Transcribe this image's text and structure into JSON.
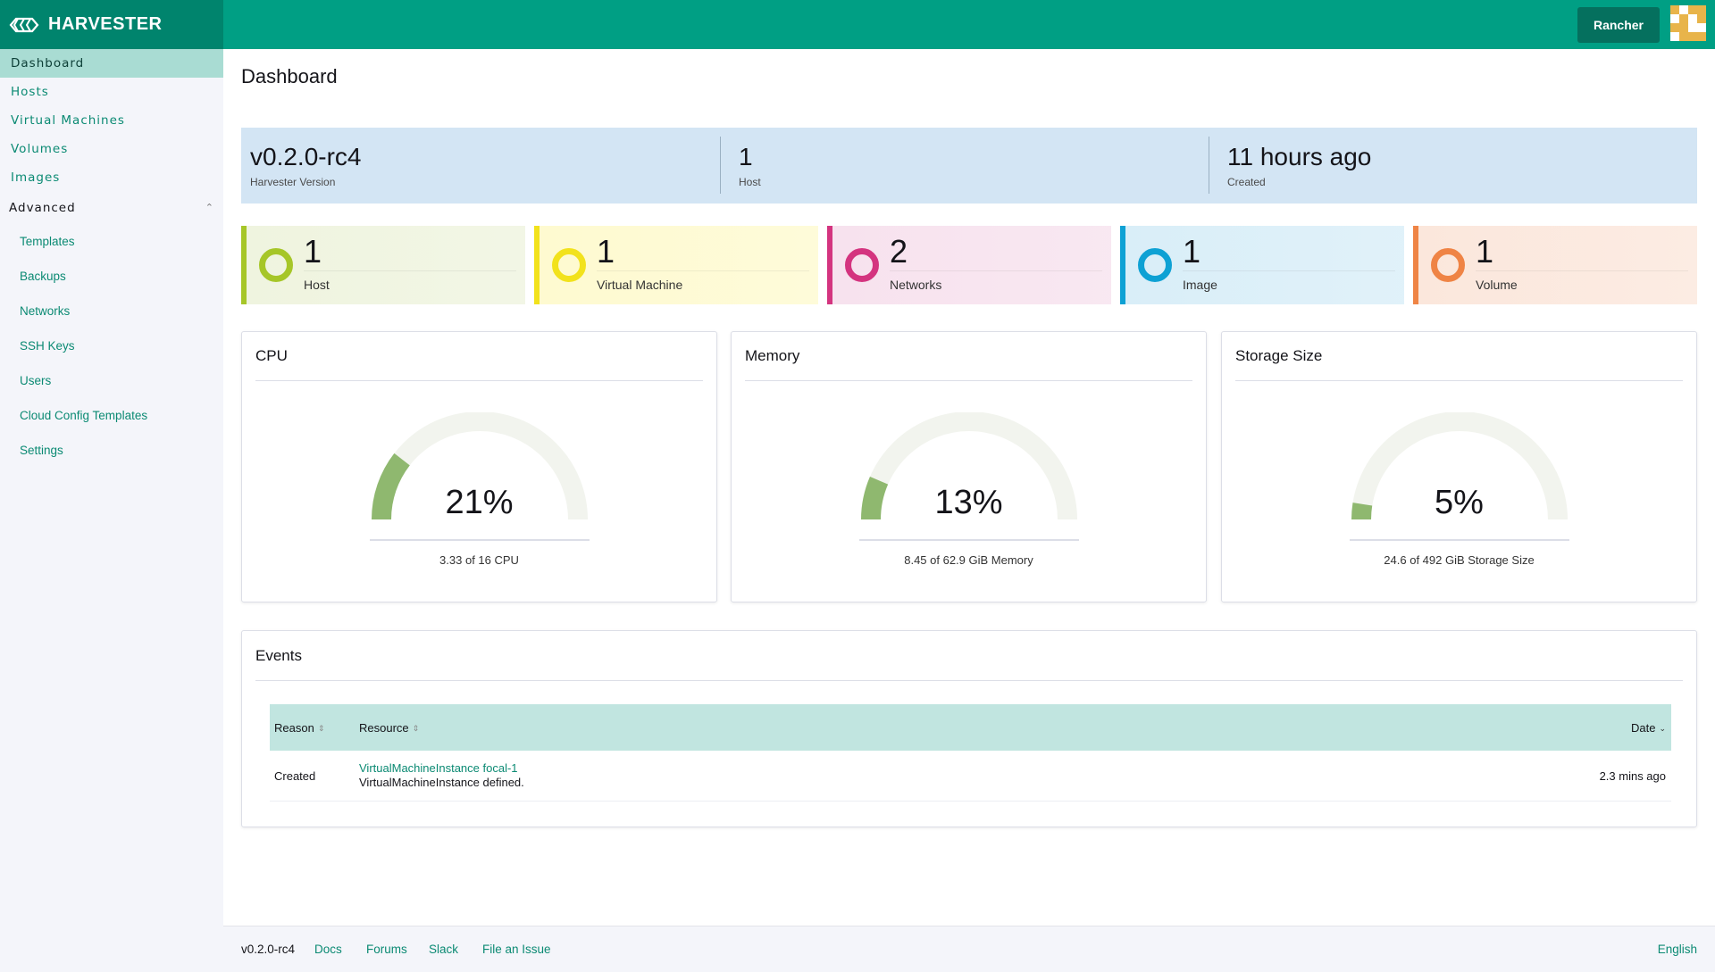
{
  "header": {
    "brand": "HARVESTER",
    "rancher_button": "Rancher"
  },
  "sidebar": {
    "items": [
      {
        "label": "Dashboard"
      },
      {
        "label": "Hosts"
      },
      {
        "label": "Virtual Machines"
      },
      {
        "label": "Volumes"
      },
      {
        "label": "Images"
      }
    ],
    "group": {
      "label": "Advanced",
      "items": [
        {
          "label": "Templates"
        },
        {
          "label": "Backups"
        },
        {
          "label": "Networks"
        },
        {
          "label": "SSH Keys"
        },
        {
          "label": "Users"
        },
        {
          "label": "Cloud Config Templates"
        },
        {
          "label": "Settings"
        }
      ]
    }
  },
  "main": {
    "title": "Dashboard",
    "summary": [
      {
        "value": "v0.2.0-rc4",
        "label": "Harvester Version"
      },
      {
        "value": "1",
        "label": "Host"
      },
      {
        "value": "11 hours ago",
        "label": "Created"
      }
    ],
    "counts": [
      {
        "value": "1",
        "label": "Host",
        "color": "#a6c628",
        "bg": "#eff4df"
      },
      {
        "value": "1",
        "label": "Virtual Machine",
        "color": "#f2e21c",
        "bg": "#fefad0"
      },
      {
        "value": "2",
        "label": "Networks",
        "color": "#d4347f",
        "bg": "#f7e2ee"
      },
      {
        "value": "1",
        "label": "Image",
        "color": "#0ea1d4",
        "bg": "#d9eef8"
      },
      {
        "value": "1",
        "label": "Volume",
        "color": "#ef8445",
        "bg": "#fbe7dc"
      }
    ],
    "gauges": [
      {
        "title": "CPU",
        "percent": 21,
        "percent_label": "21%",
        "detail": "3.33 of 16 CPU"
      },
      {
        "title": "Memory",
        "percent": 13,
        "percent_label": "13%",
        "detail": "8.45 of 62.9 GiB Memory"
      },
      {
        "title": "Storage Size",
        "percent": 5,
        "percent_label": "5%",
        "detail": "24.6 of 492 GiB Storage Size"
      }
    ],
    "events": {
      "title": "Events",
      "columns": {
        "reason": "Reason",
        "resource": "Resource",
        "date": "Date"
      },
      "rows": [
        {
          "reason": "Created",
          "resource": "VirtualMachineInstance focal-1",
          "message": "VirtualMachineInstance defined.",
          "date": "2.3 mins ago"
        }
      ]
    }
  },
  "footer": {
    "version": "v0.2.0-rc4",
    "docs": "Docs",
    "forums": "Forums",
    "slack": "Slack",
    "file_issue": "File an Issue",
    "language": "English"
  },
  "colors": {
    "accent": "#009f84",
    "gauge_fill": "#8fb86f",
    "gauge_track": "#f2f4ee"
  }
}
